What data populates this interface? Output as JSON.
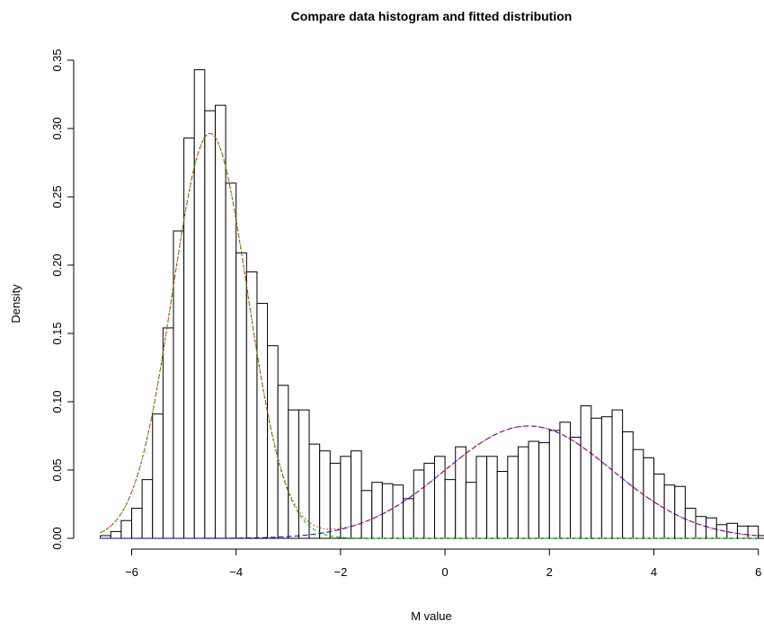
{
  "chart_data": {
    "type": "histogram",
    "title": "Compare data histogram and fitted distribution",
    "xlabel": "M value",
    "ylabel": "Density",
    "xlim": [
      -6.6,
      6.0
    ],
    "ylim": [
      0,
      0.35
    ],
    "xticks": [
      -6,
      -4,
      -2,
      0,
      2,
      4,
      6
    ],
    "yticks": [
      0.0,
      0.05,
      0.1,
      0.15,
      0.2,
      0.25,
      0.3,
      0.35
    ],
    "ytick_labels": [
      "0.00",
      "0.05",
      "0.10",
      "0.15",
      "0.20",
      "0.25",
      "0.30",
      "0.35"
    ],
    "grid": false,
    "bin_start": -6.6,
    "bin_width": 0.2,
    "density": [
      0.002,
      0.005,
      0.013,
      0.022,
      0.043,
      0.091,
      0.154,
      0.225,
      0.293,
      0.343,
      0.313,
      0.317,
      0.26,
      0.209,
      0.195,
      0.172,
      0.141,
      0.112,
      0.094,
      0.094,
      0.069,
      0.064,
      0.055,
      0.06,
      0.064,
      0.035,
      0.041,
      0.04,
      0.039,
      0.029,
      0.05,
      0.055,
      0.06,
      0.043,
      0.067,
      0.041,
      0.06,
      0.06,
      0.049,
      0.06,
      0.067,
      0.071,
      0.07,
      0.079,
      0.085,
      0.074,
      0.097,
      0.088,
      0.089,
      0.094,
      0.078,
      0.065,
      0.059,
      0.047,
      0.039,
      0.038,
      0.022,
      0.016,
      0.015,
      0.01,
      0.011,
      0.009,
      0.009,
      0.002,
      0.003,
      0.002,
      0.001
    ],
    "fitted_components": [
      {
        "mean": -4.5,
        "sd": 0.72,
        "weight": 0.535,
        "color": "#00b000",
        "dash": "4,3"
      },
      {
        "mean": 1.6,
        "sd": 1.6,
        "weight": 0.33,
        "color": "#0000cc",
        "dash": "6,3"
      }
    ],
    "mixture_line": {
      "color": "#ff0000",
      "dash": "1.5,2.5"
    },
    "colors": {
      "bar_fill": "#ffffff",
      "bar_stroke": "#000000"
    }
  }
}
